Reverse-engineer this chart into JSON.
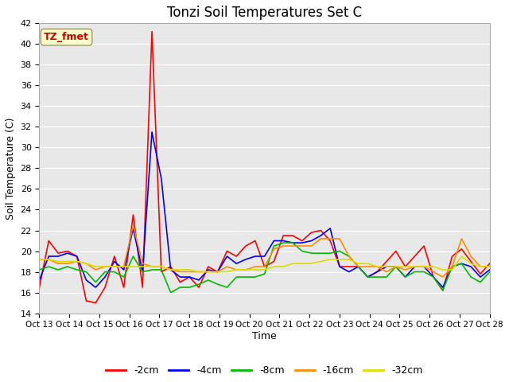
{
  "title": "Tonzi Soil Temperatures Set C",
  "xlabel": "Time",
  "ylabel": "Soil Temperature (C)",
  "ylim": [
    14,
    42
  ],
  "yticks": [
    14,
    16,
    18,
    20,
    22,
    24,
    26,
    28,
    30,
    32,
    34,
    36,
    38,
    40,
    42
  ],
  "x_labels": [
    "Oct 13",
    "Oct 14",
    "Oct 15",
    "Oct 16",
    "Oct 17",
    "Oct 18",
    "Oct 19",
    "Oct 20",
    "Oct 21",
    "Oct 22",
    "Oct 23",
    "Oct 24",
    "Oct 25",
    "Oct 26",
    "Oct 27",
    "Oct 28"
  ],
  "background_color": "#ffffff",
  "plot_bg_color": "#e8e8e8",
  "annotation_text": "TZ_fmet",
  "annotation_color": "#cc0000",
  "annotation_bg": "#ffffcc",
  "annotation_border": "#999966",
  "series": {
    "-2cm": {
      "color": "#ff0000",
      "values": [
        16.5,
        21.0,
        19.8,
        20.0,
        19.5,
        15.2,
        15.0,
        16.5,
        19.5,
        16.5,
        23.5,
        16.5,
        41.2,
        18.0,
        18.5,
        17.0,
        17.5,
        16.5,
        18.5,
        18.0,
        20.0,
        19.5,
        20.5,
        21.0,
        18.5,
        19.0,
        21.5,
        21.5,
        21.0,
        21.8,
        22.0,
        21.0,
        18.5,
        18.5,
        18.5,
        17.5,
        18.0,
        19.0,
        20.0,
        18.5,
        19.5,
        20.5,
        17.5,
        16.2,
        19.5,
        20.2,
        19.0,
        17.8,
        18.8
      ]
    },
    "-4cm": {
      "color": "#0000ff",
      "values": [
        17.2,
        19.5,
        19.5,
        19.8,
        19.5,
        17.2,
        16.5,
        17.5,
        19.0,
        18.2,
        22.2,
        18.0,
        31.5,
        27.0,
        18.2,
        17.5,
        17.5,
        17.2,
        18.2,
        18.0,
        19.5,
        18.8,
        19.2,
        19.5,
        19.5,
        21.0,
        21.0,
        20.8,
        20.8,
        21.0,
        21.5,
        22.2,
        18.5,
        18.0,
        18.5,
        17.5,
        18.0,
        18.5,
        18.5,
        17.5,
        18.5,
        18.5,
        17.5,
        16.5,
        18.5,
        18.8,
        18.5,
        17.5,
        18.2
      ]
    },
    "-8cm": {
      "color": "#00bb00",
      "values": [
        18.2,
        18.5,
        18.2,
        18.5,
        18.2,
        18.0,
        17.0,
        18.0,
        18.0,
        17.5,
        19.5,
        18.0,
        18.2,
        18.2,
        16.0,
        16.5,
        16.5,
        16.8,
        17.2,
        16.8,
        16.5,
        17.5,
        17.5,
        17.5,
        17.8,
        20.5,
        20.8,
        20.8,
        20.0,
        19.8,
        19.8,
        19.8,
        20.0,
        19.5,
        18.5,
        17.5,
        17.5,
        17.5,
        18.5,
        17.5,
        18.0,
        18.0,
        17.5,
        16.2,
        18.5,
        18.8,
        17.5,
        17.0,
        18.0
      ]
    },
    "-16cm": {
      "color": "#ff8c00",
      "values": [
        19.2,
        19.2,
        18.8,
        18.8,
        19.0,
        18.8,
        18.2,
        18.5,
        18.5,
        18.5,
        22.5,
        18.8,
        18.5,
        18.5,
        18.2,
        18.0,
        18.0,
        18.0,
        18.0,
        18.0,
        18.5,
        18.2,
        18.2,
        18.5,
        18.5,
        20.2,
        20.5,
        20.5,
        20.5,
        20.5,
        21.2,
        21.2,
        21.2,
        19.5,
        18.5,
        18.5,
        18.5,
        18.0,
        18.5,
        18.2,
        18.5,
        18.5,
        18.0,
        17.5,
        18.5,
        21.2,
        19.5,
        18.5,
        18.5
      ]
    },
    "-32cm": {
      "color": "#dddd00",
      "values": [
        19.2,
        19.2,
        19.0,
        19.0,
        19.0,
        18.8,
        18.5,
        18.5,
        18.5,
        18.5,
        18.5,
        18.5,
        18.5,
        18.5,
        18.2,
        18.2,
        18.2,
        18.0,
        18.0,
        18.0,
        18.0,
        18.2,
        18.2,
        18.2,
        18.2,
        18.5,
        18.5,
        18.8,
        18.8,
        18.8,
        19.0,
        19.2,
        19.2,
        19.2,
        18.8,
        18.8,
        18.5,
        18.5,
        18.5,
        18.5,
        18.5,
        18.5,
        18.5,
        18.2,
        18.2,
        19.5,
        18.8,
        18.5,
        18.5
      ]
    }
  },
  "legend_order": [
    "-2cm",
    "-4cm",
    "-8cm",
    "-16cm",
    "-32cm"
  ],
  "grid_color": "#ffffff",
  "title_fontsize": 12
}
